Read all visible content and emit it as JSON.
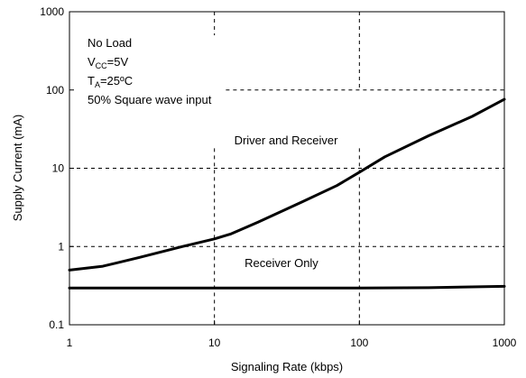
{
  "chart_data": {
    "type": "line",
    "title": "",
    "xlabel": "Signaling Rate (kbps)",
    "ylabel": "Supply Current (mA)",
    "xscale": "log",
    "yscale": "log",
    "xlim": [
      1,
      1000
    ],
    "ylim": [
      0.1,
      1000
    ],
    "x_ticks": [
      1,
      10,
      100,
      1000
    ],
    "x_tick_labels": [
      "1",
      "10",
      "100",
      "1000"
    ],
    "y_ticks": [
      0.1,
      1,
      10,
      100,
      1000
    ],
    "y_tick_labels": [
      "0.1",
      "1",
      "10",
      "100",
      "1000"
    ],
    "grid": "dashed, partial",
    "legend": "none",
    "series": [
      {
        "name": "Driver and Receiver",
        "color": "#000000",
        "x": [
          1,
          1.7,
          3,
          6,
          10,
          13,
          20,
          40,
          70,
          100,
          150,
          300,
          600,
          1000
        ],
        "y": [
          0.5,
          0.56,
          0.72,
          1.0,
          1.25,
          1.45,
          2.05,
          3.7,
          6.0,
          8.9,
          14,
          26,
          46,
          76
        ]
      },
      {
        "name": "Receiver Only",
        "color": "#000000",
        "x": [
          1,
          10,
          100,
          300,
          1000
        ],
        "y": [
          0.295,
          0.295,
          0.295,
          0.298,
          0.31
        ]
      }
    ],
    "notes": [
      {
        "main": "No Load"
      },
      {
        "main": "V",
        "sub": "CC",
        "rest": "=5V"
      },
      {
        "main": "T",
        "sub": "A",
        "rest": "=25ºC"
      },
      {
        "main": "50% Square wave input"
      }
    ]
  }
}
